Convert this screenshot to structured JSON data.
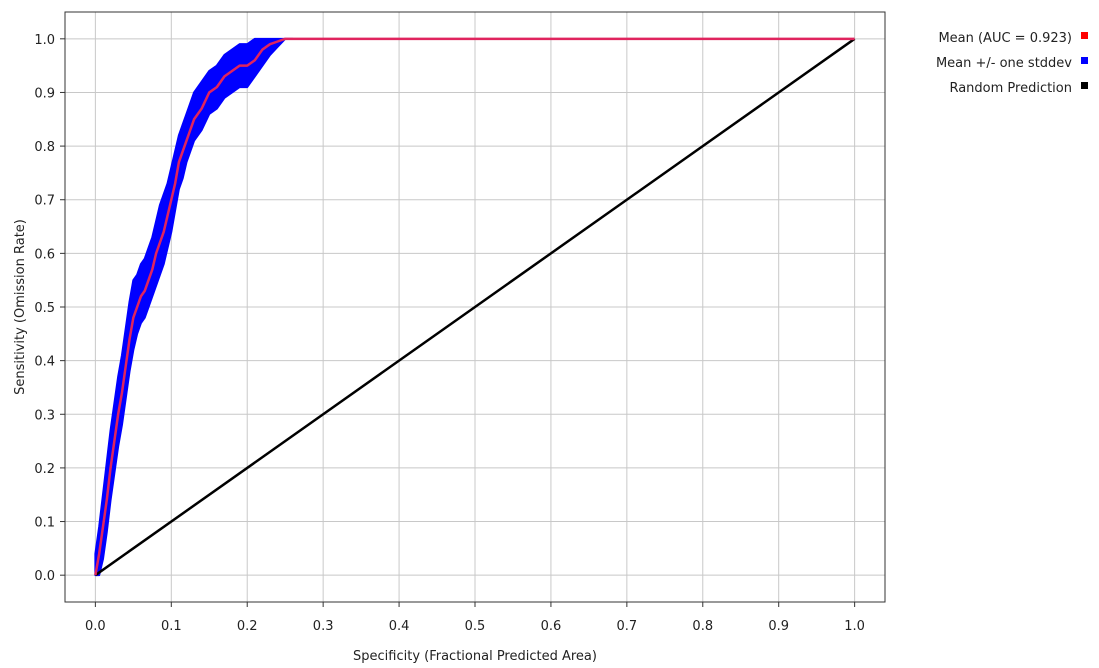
{
  "chart_data": {
    "type": "line",
    "xlabel": "Specificity (Fractional Predicted Area)",
    "ylabel": "Sensitivity (Omission Rate)",
    "xlim": [
      -0.04,
      1.04
    ],
    "ylim": [
      -0.05,
      1.05
    ],
    "xticks": [
      "0.0",
      "0.1",
      "0.2",
      "0.3",
      "0.4",
      "0.5",
      "0.6",
      "0.7",
      "0.8",
      "0.9",
      "1.0"
    ],
    "yticks": [
      "0.0",
      "0.1",
      "0.2",
      "0.3",
      "0.4",
      "0.5",
      "0.6",
      "0.7",
      "0.8",
      "0.9",
      "1.0"
    ],
    "grid": true,
    "legend_placement": "outside-top-right",
    "series": [
      {
        "name": "Mean (AUC = 0.923)",
        "color": "#ff0000",
        "line_color": "#e0245e",
        "x": [
          0.0,
          0.005,
          0.01,
          0.015,
          0.02,
          0.025,
          0.03,
          0.035,
          0.04,
          0.045,
          0.05,
          0.055,
          0.06,
          0.065,
          0.07,
          0.075,
          0.08,
          0.085,
          0.09,
          0.095,
          0.1,
          0.105,
          0.11,
          0.115,
          0.12,
          0.125,
          0.13,
          0.14,
          0.15,
          0.16,
          0.17,
          0.18,
          0.19,
          0.2,
          0.21,
          0.22,
          0.23,
          0.24,
          0.25,
          0.26,
          0.3,
          0.4,
          0.5,
          0.6,
          0.7,
          0.8,
          0.9,
          1.0
        ],
        "y": [
          0.0,
          0.04,
          0.09,
          0.14,
          0.2,
          0.25,
          0.3,
          0.34,
          0.39,
          0.44,
          0.48,
          0.5,
          0.52,
          0.53,
          0.55,
          0.57,
          0.6,
          0.62,
          0.64,
          0.67,
          0.7,
          0.73,
          0.77,
          0.79,
          0.81,
          0.83,
          0.85,
          0.87,
          0.9,
          0.91,
          0.93,
          0.94,
          0.95,
          0.95,
          0.96,
          0.98,
          0.99,
          0.995,
          1.0,
          1.0,
          1.0,
          1.0,
          1.0,
          1.0,
          1.0,
          1.0,
          1.0,
          1.0
        ]
      },
      {
        "name": "Mean +/- one stddev",
        "color": "#0000ff",
        "x": [
          0.0,
          0.005,
          0.01,
          0.015,
          0.02,
          0.025,
          0.03,
          0.035,
          0.04,
          0.045,
          0.05,
          0.055,
          0.06,
          0.065,
          0.07,
          0.075,
          0.08,
          0.085,
          0.09,
          0.095,
          0.1,
          0.105,
          0.11,
          0.115,
          0.12,
          0.125,
          0.13,
          0.14,
          0.15,
          0.16,
          0.17,
          0.18,
          0.19,
          0.2,
          0.21,
          0.22,
          0.23,
          0.24,
          0.25,
          0.26
        ],
        "lower": [
          0.0,
          0.0,
          0.03,
          0.08,
          0.14,
          0.19,
          0.24,
          0.28,
          0.33,
          0.38,
          0.42,
          0.45,
          0.47,
          0.48,
          0.5,
          0.52,
          0.54,
          0.56,
          0.58,
          0.61,
          0.64,
          0.68,
          0.72,
          0.74,
          0.77,
          0.79,
          0.81,
          0.83,
          0.86,
          0.87,
          0.89,
          0.9,
          0.91,
          0.91,
          0.93,
          0.95,
          0.97,
          0.985,
          1.0,
          1.0
        ],
        "upper": [
          0.04,
          0.09,
          0.15,
          0.21,
          0.27,
          0.32,
          0.37,
          0.41,
          0.46,
          0.51,
          0.55,
          0.56,
          0.58,
          0.59,
          0.61,
          0.63,
          0.66,
          0.69,
          0.71,
          0.73,
          0.76,
          0.79,
          0.82,
          0.84,
          0.86,
          0.88,
          0.9,
          0.92,
          0.94,
          0.95,
          0.97,
          0.98,
          0.99,
          0.99,
          1.0,
          1.0,
          1.0,
          1.0,
          1.0,
          1.0
        ]
      },
      {
        "name": "Random Prediction",
        "color": "#000000",
        "x": [
          0.0,
          1.0
        ],
        "y": [
          0.0,
          1.0
        ]
      }
    ]
  }
}
